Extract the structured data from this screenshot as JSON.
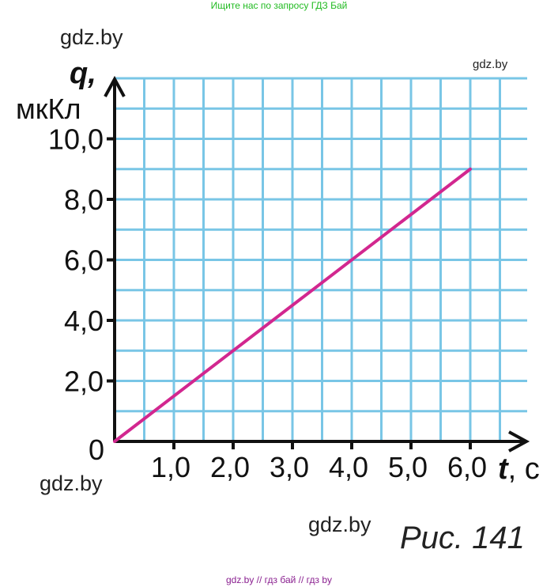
{
  "banner": "Ищите нас по запросу ГДЗ Бай",
  "footer": "gdz.by  //  гдз бай  //  гдз by",
  "watermarks": {
    "top_left": "gdz.by",
    "top_right": "gdz.by",
    "bottom_left": "gdz.by",
    "bottom_center": "gdz.by"
  },
  "caption": "Рис. 141",
  "colors": {
    "grid": "#79c6e6",
    "line": "#d2278f",
    "axis": "#111111"
  },
  "chart_data": {
    "type": "line",
    "title": "",
    "xlabel_symbol": "t",
    "xlabel_unit": ", с",
    "ylabel_symbol": "q,",
    "ylabel_unit": "мкКл",
    "origin_label": "0",
    "xlim": [
      0,
      7.0
    ],
    "ylim": [
      0,
      12.0
    ],
    "grid": true,
    "x_ticks": [
      {
        "value": 1.0,
        "label": "1,0"
      },
      {
        "value": 2.0,
        "label": "2,0"
      },
      {
        "value": 3.0,
        "label": "3,0"
      },
      {
        "value": 4.0,
        "label": "4,0"
      },
      {
        "value": 5.0,
        "label": "5,0"
      },
      {
        "value": 6.0,
        "label": "6,0"
      }
    ],
    "y_ticks": [
      {
        "value": 2.0,
        "label": "2,0"
      },
      {
        "value": 4.0,
        "label": "4,0"
      },
      {
        "value": 6.0,
        "label": "6,0"
      },
      {
        "value": 8.0,
        "label": "8,0"
      },
      {
        "value": 10.0,
        "label": "10,0"
      }
    ],
    "series": [
      {
        "x": [
          0,
          6.0
        ],
        "y": [
          0,
          9.0
        ]
      }
    ]
  }
}
